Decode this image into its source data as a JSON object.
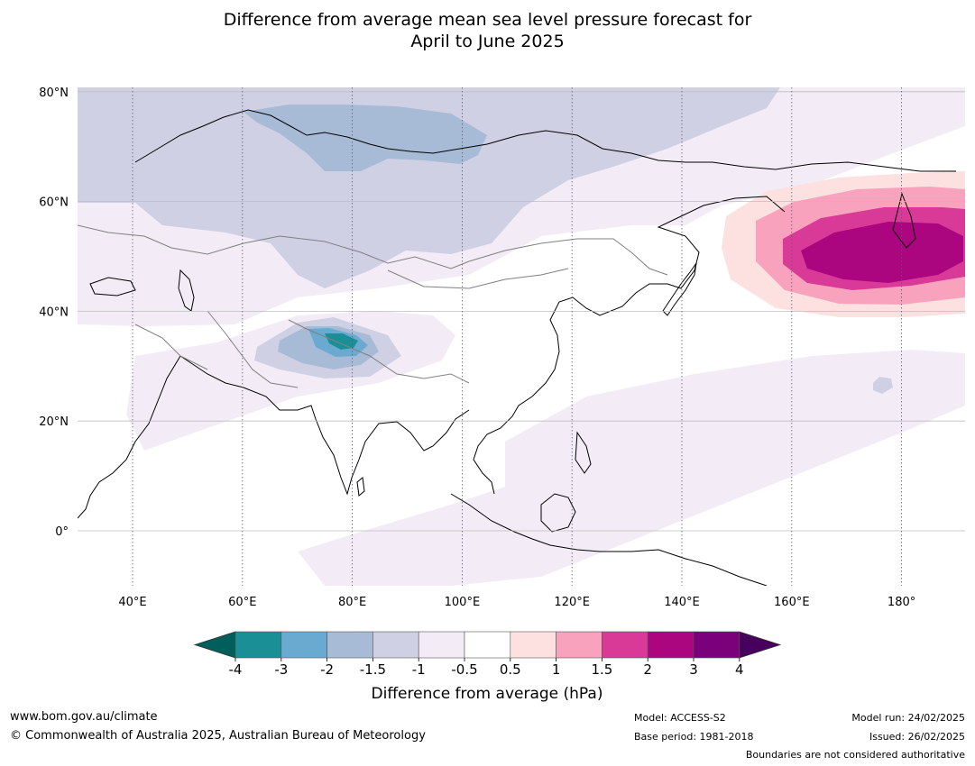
{
  "title": {
    "line1": "Difference from average mean sea level pressure forecast for",
    "line2": "April to June 2025"
  },
  "map": {
    "extent": {
      "lon_min": 30,
      "lon_max": 192,
      "lat_min": -10,
      "lat_max": 81
    },
    "lat_labels": [
      {
        "lat": 80,
        "text": "80°N"
      },
      {
        "lat": 60,
        "text": "60°N"
      },
      {
        "lat": 40,
        "text": "40°N"
      },
      {
        "lat": 20,
        "text": "20°N"
      },
      {
        "lat": 0,
        "text": "0°"
      }
    ],
    "lon_labels": [
      {
        "lon": 40,
        "text": "40°E"
      },
      {
        "lon": 60,
        "text": "60°E"
      },
      {
        "lon": 80,
        "text": "80°E"
      },
      {
        "lon": 100,
        "text": "100°E"
      },
      {
        "lon": 120,
        "text": "120°E"
      },
      {
        "lon": 140,
        "text": "140°E"
      },
      {
        "lon": 160,
        "text": "160°E"
      },
      {
        "lon": 180,
        "text": "180°"
      }
    ]
  },
  "colorbar": {
    "label": "Difference from average (hPa)",
    "ticks": [
      "-4",
      "-3",
      "-2",
      "-1.5",
      "-1",
      "-0.5",
      "0.5",
      "1",
      "1.5",
      "2",
      "3",
      "4"
    ],
    "colors": [
      "#1a8f96",
      "#6aaad1",
      "#a7bad6",
      "#d0d0e5",
      "#f3ecf6",
      "#ffffff",
      "#fde0e0",
      "#f9a2bd",
      "#d93a98",
      "#ab0680",
      "#7a0179"
    ],
    "under_color": "#005f5a",
    "over_color": "#48005f"
  },
  "footer": {
    "url": "www.bom.gov.au/climate",
    "copyright": "© Commonwealth of Australia 2025, Australian Bureau of Meteorology",
    "model": "Model: ACCESS-S2",
    "base_period": "Base period: 1981-2018",
    "model_run": "Model run: 24/02/2025",
    "issued": "Issued: 26/02/2025",
    "disclaimer": "Boundaries are not considered authoritative"
  }
}
